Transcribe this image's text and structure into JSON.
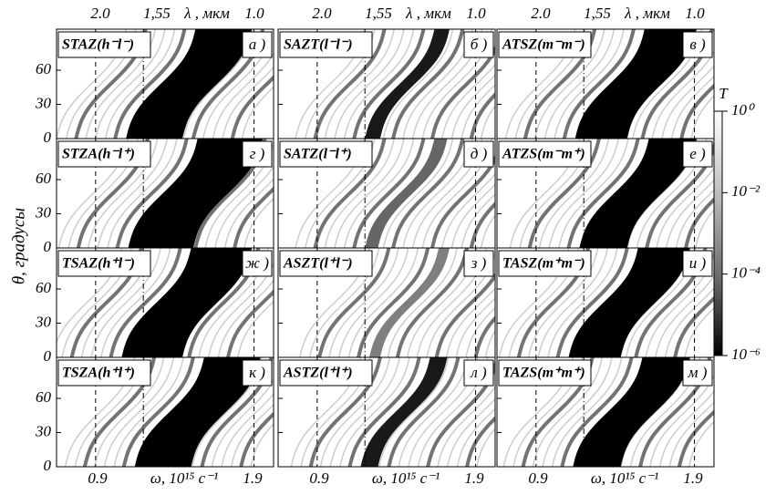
{
  "figure": {
    "y_label": "θ, градусы",
    "y_ticks": [
      "0",
      "30",
      "60"
    ],
    "top_axis": {
      "left": "2.0",
      "mid": "1,55",
      "unit": "λ , мкм",
      "right": "1.0"
    },
    "bottom_axis": {
      "left": "0.9",
      "unit": "ω, 10¹⁵ c⁻¹",
      "right": "1.9"
    },
    "colorbar": {
      "title": "T",
      "labels": [
        "10⁰",
        "10⁻²",
        "10⁻⁴",
        "10⁻⁶"
      ]
    },
    "panels": [
      {
        "label": "STAZ(h⁻l⁻)",
        "letter": "а )"
      },
      {
        "label": "SAZT(l⁻l⁻)",
        "letter": "б )"
      },
      {
        "label": "ATSZ(m⁻m⁻)",
        "letter": "в )"
      },
      {
        "label": "STZA(h⁻l⁺)",
        "letter": "г )"
      },
      {
        "label": "SATZ(l⁻l⁺)",
        "letter": "д )"
      },
      {
        "label": "ATZS(m⁻m⁺)",
        "letter": "е )"
      },
      {
        "label": "TSAZ(h⁺l⁻)",
        "letter": "ж )"
      },
      {
        "label": "ASZT(l⁺l⁻)",
        "letter": "з )"
      },
      {
        "label": "TASZ(m⁺m⁻)",
        "letter": "и )"
      },
      {
        "label": "TSZA(h⁺l⁺)",
        "letter": "к )"
      },
      {
        "label": "ASTZ(l⁺l⁺)",
        "letter": "л )"
      },
      {
        "label": "TAZS(m⁺m⁺)",
        "letter": "м )"
      }
    ]
  }
}
